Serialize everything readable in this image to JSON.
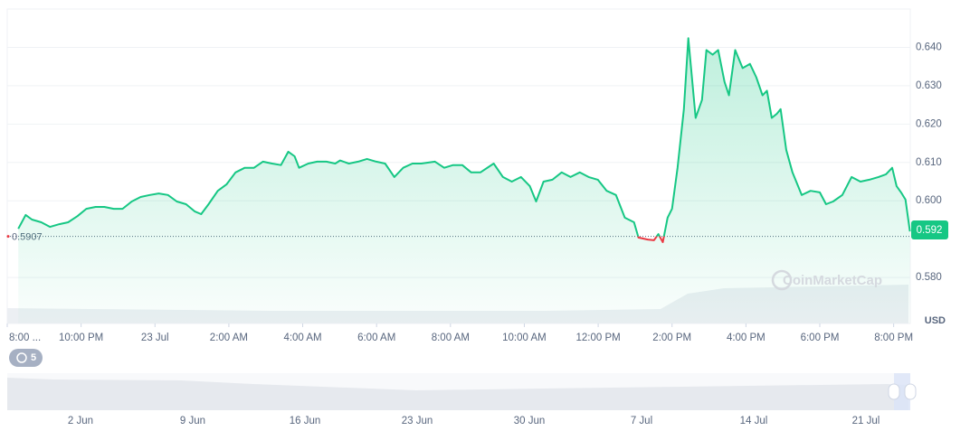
{
  "chart_data": {
    "type": "line",
    "currency_label": "USD",
    "watermark": "CoinMarketCap",
    "open_price": 0.5907,
    "current_price": 0.592,
    "xlim": [
      0,
      24.45
    ],
    "ylim": [
      0.568,
      0.65
    ],
    "xticks": [
      {
        "value": 0,
        "label": "8:00 ..."
      },
      {
        "value": 2,
        "label": "10:00 PM"
      },
      {
        "value": 4,
        "label": "23 Jul"
      },
      {
        "value": 6,
        "label": "2:00 AM"
      },
      {
        "value": 8,
        "label": "4:00 AM"
      },
      {
        "value": 10,
        "label": "6:00 AM"
      },
      {
        "value": 12,
        "label": "8:00 AM"
      },
      {
        "value": 14,
        "label": "10:00 AM"
      },
      {
        "value": 16,
        "label": "12:00 PM"
      },
      {
        "value": 18,
        "label": "2:00 PM"
      },
      {
        "value": 20,
        "label": "4:00 PM"
      },
      {
        "value": 22,
        "label": "6:00 PM"
      },
      {
        "value": 24,
        "label": "8:00 PM"
      }
    ],
    "yticks": [
      {
        "value": 0.58,
        "label": "0.580"
      },
      {
        "value": 0.6,
        "label": "0.600"
      },
      {
        "value": 0.61,
        "label": "0.610"
      },
      {
        "value": 0.62,
        "label": "0.620"
      },
      {
        "value": 0.63,
        "label": "0.630"
      },
      {
        "value": 0.64,
        "label": "0.640"
      }
    ],
    "grid": true,
    "series": [
      {
        "color": "#16c784",
        "below_color": "#ea3943",
        "x": [
          0.3,
          0.5,
          0.67,
          0.92,
          1.16,
          1.41,
          1.65,
          1.9,
          2.14,
          2.39,
          2.63,
          2.88,
          3.12,
          3.37,
          3.61,
          3.86,
          4.1,
          4.35,
          4.59,
          4.84,
          5.08,
          5.25,
          5.45,
          5.7,
          5.94,
          6.18,
          6.43,
          6.68,
          6.92,
          7.17,
          7.41,
          7.61,
          7.78,
          7.9,
          8.15,
          8.39,
          8.64,
          8.88,
          9.01,
          9.25,
          9.5,
          9.74,
          9.99,
          10.23,
          10.48,
          10.72,
          10.97,
          11.21,
          11.58,
          11.83,
          12.07,
          12.32,
          12.56,
          12.81,
          13.17,
          13.42,
          13.66,
          13.91,
          14.15,
          14.32,
          14.52,
          14.76,
          15.01,
          15.25,
          15.5,
          15.74,
          15.99,
          16.23,
          16.48,
          16.72,
          16.97,
          17.09,
          17.34,
          17.51,
          17.63,
          17.75,
          17.88,
          18.0,
          18.15,
          18.32,
          18.44,
          18.64,
          18.81,
          18.93,
          19.1,
          19.25,
          19.42,
          19.54,
          19.71,
          19.91,
          20.11,
          20.28,
          20.45,
          20.57,
          20.7,
          20.84,
          20.94,
          21.09,
          21.26,
          21.51,
          21.75,
          22.0,
          22.17,
          22.36,
          22.61,
          22.86,
          23.1,
          23.34,
          23.59,
          23.79,
          23.96,
          24.08,
          24.2,
          24.32,
          24.44
        ],
        "values": [
          0.5927,
          0.5963,
          0.5951,
          0.5944,
          0.5932,
          0.5939,
          0.5944,
          0.596,
          0.5979,
          0.5984,
          0.5984,
          0.5979,
          0.5979,
          0.5998,
          0.601,
          0.6015,
          0.6019,
          0.6015,
          0.5998,
          0.5991,
          0.5972,
          0.5965,
          0.5991,
          0.6026,
          0.6043,
          0.6074,
          0.6086,
          0.6086,
          0.6102,
          0.6097,
          0.6093,
          0.6128,
          0.6116,
          0.6086,
          0.6097,
          0.6102,
          0.6102,
          0.6097,
          0.6105,
          0.6097,
          0.6102,
          0.6109,
          0.6102,
          0.6097,
          0.6062,
          0.6086,
          0.6097,
          0.6097,
          0.6102,
          0.6086,
          0.6093,
          0.6093,
          0.6074,
          0.6074,
          0.6097,
          0.6062,
          0.605,
          0.6062,
          0.6038,
          0.5998,
          0.605,
          0.6055,
          0.6074,
          0.6062,
          0.6074,
          0.6062,
          0.6055,
          0.6026,
          0.6015,
          0.5956,
          0.5944,
          0.5904,
          0.5899,
          0.5897,
          0.5913,
          0.5892,
          0.5956,
          0.5979,
          0.6086,
          0.6239,
          0.6424,
          0.6216,
          0.6263,
          0.6393,
          0.6381,
          0.6393,
          0.631,
          0.6275,
          0.6393,
          0.6346,
          0.6357,
          0.6322,
          0.6275,
          0.6287,
          0.6216,
          0.6227,
          0.6239,
          0.6133,
          0.6074,
          0.6015,
          0.6026,
          0.6022,
          0.5991,
          0.5998,
          0.6015,
          0.6062,
          0.605,
          0.6055,
          0.6062,
          0.6069,
          0.6086,
          0.6038,
          0.6022,
          0.6003,
          0.592
        ]
      }
    ]
  },
  "navigator": {
    "history_badge": "5",
    "labels": [
      "2 Jun",
      "9 Jun",
      "16 Jun",
      "23 Jun",
      "30 Jun",
      "7 Jul",
      "14 Jul",
      "21 Jul"
    ]
  }
}
